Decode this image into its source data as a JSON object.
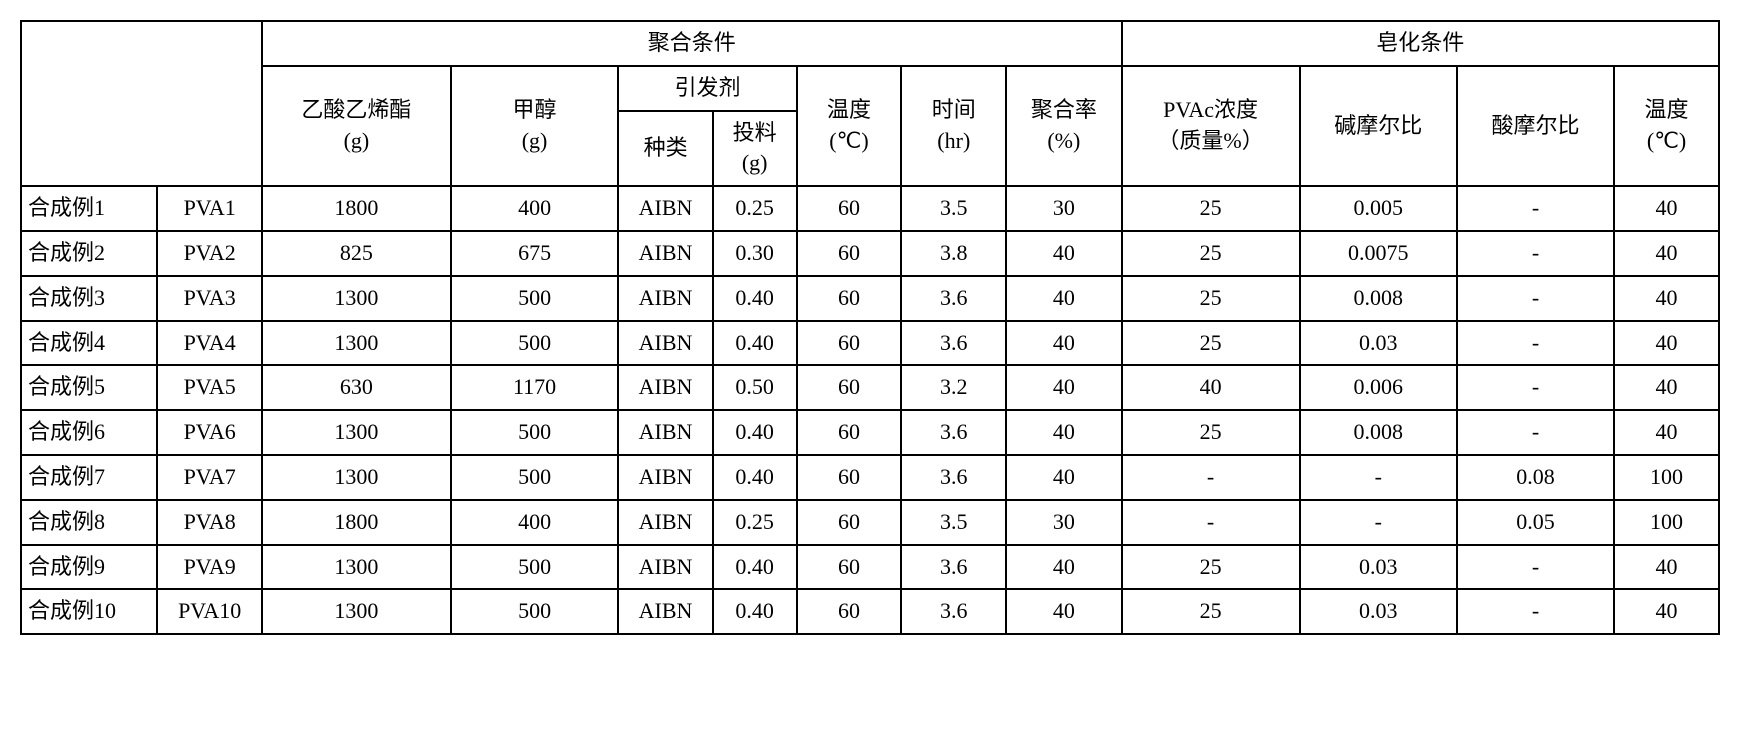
{
  "table": {
    "header": {
      "poly_conditions": "聚合条件",
      "sap_conditions": "皂化条件",
      "vinyl_acetate": "乙酸乙烯酯\n(g)",
      "methanol": "甲醇\n(g)",
      "initiator": "引发剂",
      "initiator_type": "种类",
      "initiator_feed": "投料\n(g)",
      "temperature": "温度\n(℃)",
      "time": "时间\n(hr)",
      "poly_rate": "聚合率\n(%)",
      "pvac_conc": "PVAc浓度\n（质量%）",
      "alkali_ratio": "碱摩尔比",
      "acid_ratio": "酸摩尔比",
      "sap_temp": "温度\n(℃)"
    },
    "rows": [
      {
        "ex": "合成例1",
        "pva": "PVA1",
        "va": "1800",
        "meoh": "400",
        "it": "AIBN",
        "if_": "0.25",
        "t": "60",
        "hr": "3.5",
        "p": "30",
        "pc": "25",
        "al": "0.005",
        "ac": "-",
        "st": "40"
      },
      {
        "ex": "合成例2",
        "pva": "PVA2",
        "va": "825",
        "meoh": "675",
        "it": "AIBN",
        "if_": "0.30",
        "t": "60",
        "hr": "3.8",
        "p": "40",
        "pc": "25",
        "al": "0.0075",
        "ac": "-",
        "st": "40"
      },
      {
        "ex": "合成例3",
        "pva": "PVA3",
        "va": "1300",
        "meoh": "500",
        "it": "AIBN",
        "if_": "0.40",
        "t": "60",
        "hr": "3.6",
        "p": "40",
        "pc": "25",
        "al": "0.008",
        "ac": "-",
        "st": "40"
      },
      {
        "ex": "合成例4",
        "pva": "PVA4",
        "va": "1300",
        "meoh": "500",
        "it": "AIBN",
        "if_": "0.40",
        "t": "60",
        "hr": "3.6",
        "p": "40",
        "pc": "25",
        "al": "0.03",
        "ac": "-",
        "st": "40"
      },
      {
        "ex": "合成例5",
        "pva": "PVA5",
        "va": "630",
        "meoh": "1170",
        "it": "AIBN",
        "if_": "0.50",
        "t": "60",
        "hr": "3.2",
        "p": "40",
        "pc": "40",
        "al": "0.006",
        "ac": "-",
        "st": "40"
      },
      {
        "ex": "合成例6",
        "pva": "PVA6",
        "va": "1300",
        "meoh": "500",
        "it": "AIBN",
        "if_": "0.40",
        "t": "60",
        "hr": "3.6",
        "p": "40",
        "pc": "25",
        "al": "0.008",
        "ac": "-",
        "st": "40"
      },
      {
        "ex": "合成例7",
        "pva": "PVA7",
        "va": "1300",
        "meoh": "500",
        "it": "AIBN",
        "if_": "0.40",
        "t": "60",
        "hr": "3.6",
        "p": "40",
        "pc": "-",
        "al": "-",
        "ac": "0.08",
        "st": "100"
      },
      {
        "ex": "合成例8",
        "pva": "PVA8",
        "va": "1800",
        "meoh": "400",
        "it": "AIBN",
        "if_": "0.25",
        "t": "60",
        "hr": "3.5",
        "p": "30",
        "pc": "-",
        "al": "-",
        "ac": "0.05",
        "st": "100"
      },
      {
        "ex": "合成例9",
        "pva": "PVA9",
        "va": "1300",
        "meoh": "500",
        "it": "AIBN",
        "if_": "0.40",
        "t": "60",
        "hr": "3.6",
        "p": "40",
        "pc": "25",
        "al": "0.03",
        "ac": "-",
        "st": "40"
      },
      {
        "ex": "合成例10",
        "pva": "PVA10",
        "va": "1300",
        "meoh": "500",
        "it": "AIBN",
        "if_": "0.40",
        "t": "60",
        "hr": "3.6",
        "p": "40",
        "pc": "25",
        "al": "0.03",
        "ac": "-",
        "st": "40"
      }
    ],
    "col_widths": {
      "ex": 130,
      "pva": 100,
      "va": 180,
      "meoh": 160,
      "it": 90,
      "if_": 80,
      "t": 100,
      "hr": 100,
      "p": 110,
      "pc": 170,
      "al": 150,
      "ac": 150,
      "st": 100
    },
    "colors": {
      "border": "#000000",
      "background": "#ffffff",
      "text": "#000000"
    },
    "fontsize": 22
  }
}
